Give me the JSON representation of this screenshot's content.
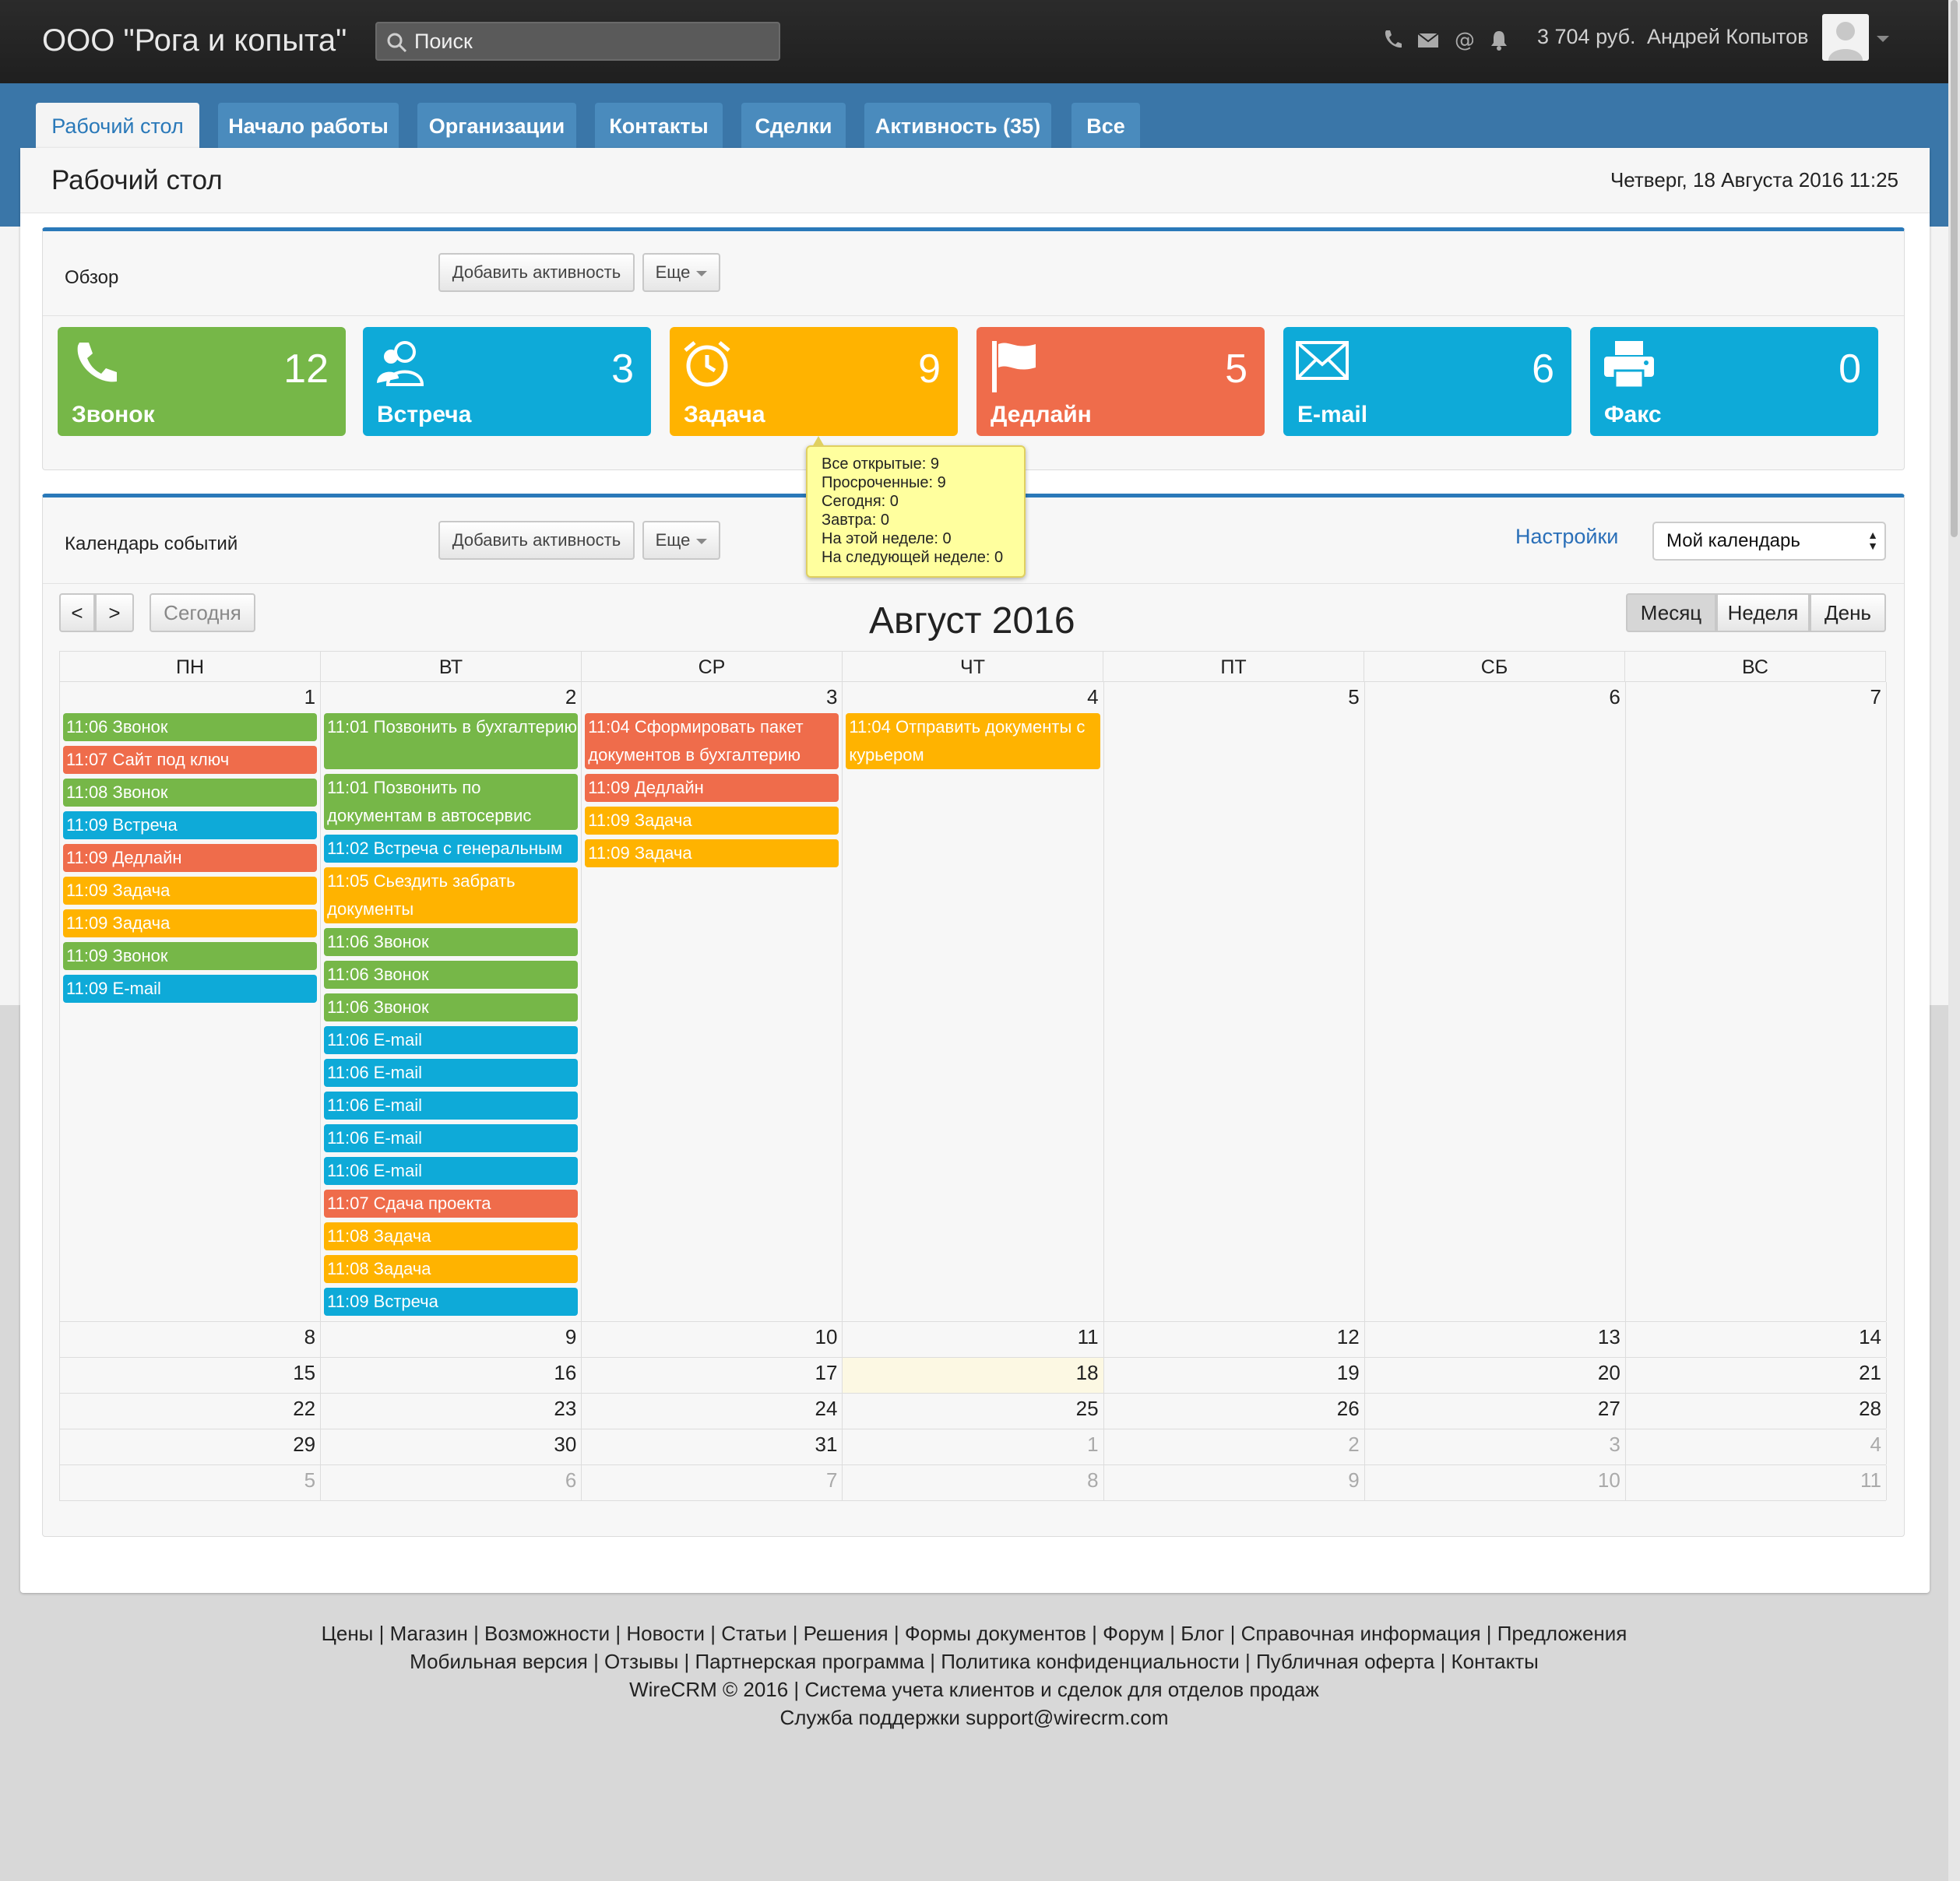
{
  "header": {
    "brand": "ООО \"Рога и копыта\"",
    "search_placeholder": "Поиск",
    "balance": "3 704 руб.",
    "user": "Андрей Копытов",
    "icons": [
      "phone-icon",
      "mail-icon",
      "at-icon",
      "bell-icon"
    ]
  },
  "tabs": [
    {
      "label": "Рабочий стол",
      "active": true
    },
    {
      "label": "Начало работы"
    },
    {
      "label": "Организации"
    },
    {
      "label": "Контакты"
    },
    {
      "label": "Сделки"
    },
    {
      "label": "Активность (35)"
    },
    {
      "label": "Все"
    }
  ],
  "page": {
    "title": "Рабочий стол",
    "date": "Четверг, 18 Августа 2016 11:25"
  },
  "overview": {
    "label": "Обзор",
    "add_button": "Добавить активность",
    "more_button": "Еще",
    "cards": [
      {
        "label": "Звонок",
        "count": "12",
        "color": "#76b748",
        "icon": "phone-icon"
      },
      {
        "label": "Встреча",
        "count": "3",
        "color": "#0eaad8",
        "icon": "users-icon"
      },
      {
        "label": "Задача",
        "count": "9",
        "color": "#ffb300",
        "icon": "alarm-clock-icon"
      },
      {
        "label": "Дедлайн",
        "count": "5",
        "color": "#ef6c4b",
        "icon": "flag-icon"
      },
      {
        "label": "E-mail",
        "count": "6",
        "color": "#0eaad8",
        "icon": "envelope-icon"
      },
      {
        "label": "Факс",
        "count": "0",
        "color": "#0eaad8",
        "icon": "printer-icon"
      }
    ]
  },
  "tooltip": {
    "lines": [
      "Все открытые: 9",
      "Просроченные: 9",
      "Сегодня: 0",
      "Завтра: 0",
      "На этой неделе: 0",
      "На следующей неделе: 0"
    ]
  },
  "calendar": {
    "label": "Календарь событий",
    "add_button": "Добавить активность",
    "more_button": "Еще",
    "settings": "Настройки",
    "calendar_select": "Мой календарь",
    "prev": "<",
    "next": ">",
    "today": "Сегодня",
    "title": "Август 2016",
    "views": [
      "Месяц",
      "Неделя",
      "День"
    ],
    "weekdays": [
      "ПН",
      "ВТ",
      "СР",
      "ЧТ",
      "ПТ",
      "СБ",
      "ВС"
    ],
    "weeks": [
      [
        "1",
        "2",
        "3",
        "4",
        "5",
        "6",
        "7"
      ],
      [
        "8",
        "9",
        "10",
        "11",
        "12",
        "13",
        "14"
      ],
      [
        "15",
        "16",
        "17",
        "18",
        "19",
        "20",
        "21"
      ],
      [
        "22",
        "23",
        "24",
        "25",
        "26",
        "27",
        "28"
      ],
      [
        "29",
        "30",
        "31",
        "1",
        "2",
        "3",
        "4"
      ],
      [
        "5",
        "6",
        "7",
        "8",
        "9",
        "10",
        "11"
      ]
    ],
    "events_mon": [
      {
        "text": "11:06 Звонок",
        "color": "green"
      },
      {
        "text": "11:07 Сайт под ключ",
        "color": "red"
      },
      {
        "text": "11:08 Звонок",
        "color": "green"
      },
      {
        "text": "11:09 Встреча",
        "color": "blue"
      },
      {
        "text": "11:09 Дедлайн",
        "color": "red"
      },
      {
        "text": "11:09 Задача",
        "color": "orange"
      },
      {
        "text": "11:09 Задача",
        "color": "orange"
      },
      {
        "text": "11:09 Звонок",
        "color": "green"
      },
      {
        "text": "11:09 E-mail",
        "color": "blue"
      }
    ],
    "events_tue": [
      {
        "text": "11:01 Позвонить в бухгалтерию",
        "color": "green",
        "lines": 2
      },
      {
        "text": "11:01 Позвонить по документам в автосервис",
        "color": "green",
        "lines": 2
      },
      {
        "text": "11:02 Встреча с генеральным",
        "color": "blue",
        "lines": 1
      },
      {
        "text": "11:05 Сьездить забрать документы",
        "color": "orange",
        "lines": 2
      },
      {
        "text": "11:06 Звонок",
        "color": "green",
        "lines": 1
      },
      {
        "text": "11:06 Звонок",
        "color": "green",
        "lines": 1
      },
      {
        "text": "11:06 Звонок",
        "color": "green",
        "lines": 1
      },
      {
        "text": "11:06 E-mail",
        "color": "blue",
        "lines": 1
      },
      {
        "text": "11:06 E-mail",
        "color": "blue",
        "lines": 1
      },
      {
        "text": "11:06 E-mail",
        "color": "blue",
        "lines": 1
      },
      {
        "text": "11:06 E-mail",
        "color": "blue",
        "lines": 1
      },
      {
        "text": "11:06 E-mail",
        "color": "blue",
        "lines": 1
      },
      {
        "text": "11:07 Сдача проекта",
        "color": "red",
        "lines": 1
      },
      {
        "text": "11:08 Задача",
        "color": "orange",
        "lines": 1
      },
      {
        "text": "11:08 Задача",
        "color": "orange",
        "lines": 1
      },
      {
        "text": "11:09 Встреча",
        "color": "blue",
        "lines": 1
      }
    ],
    "events_wed": [
      {
        "text": "11:04 Сформировать пакет документов в бухгалтерию",
        "color": "red",
        "lines": 2
      },
      {
        "text": "11:09 Дедлайн",
        "color": "red",
        "lines": 1
      },
      {
        "text": "11:09 Задача",
        "color": "orange",
        "lines": 1
      },
      {
        "text": "11:09 Задача",
        "color": "orange",
        "lines": 1
      }
    ],
    "events_thu": [
      {
        "text": "11:04 Отправить документы с курьером",
        "color": "orange",
        "lines": 2
      }
    ]
  },
  "footer": {
    "line1": "Цены | Магазин | Возможности | Новости | Статьи | Решения | Формы документов | Форум | Блог | Справочная информация | Предложения",
    "line2": "Мобильная версия | Отзывы | Партнерская программа | Политика конфиденциальности | Публичная оферта | Контакты",
    "line3": "WireCRM © 2016 | Система учета клиентов и сделок для отделов продаж",
    "line4": "Служба поддержки support@wirecrm.com"
  }
}
